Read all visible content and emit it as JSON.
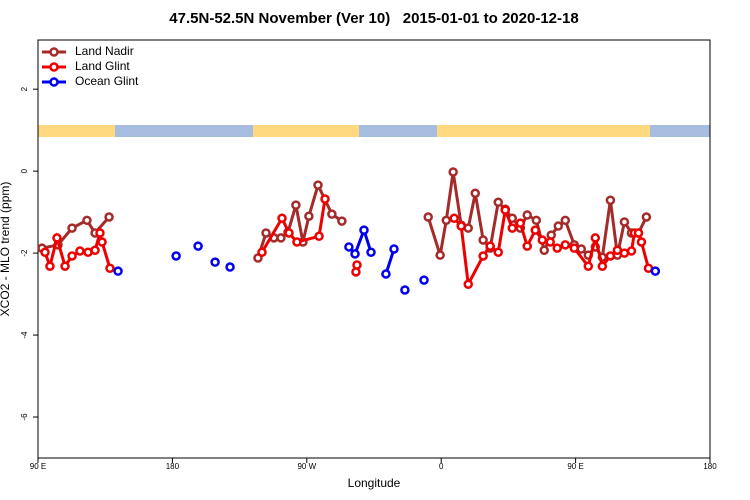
{
  "chart_data": {
    "type": "line",
    "title": "47.5N-52.5N November (Ver 10)   2015-01-01 to 2020-12-18",
    "x_label": "Longitude",
    "y_label": "XCO2 - MLO trend (ppm)",
    "xlim": [
      90,
      540
    ],
    "ylim": [
      -7,
      3.2
    ],
    "xticks": [
      {
        "value": 90,
        "label": "90 E"
      },
      180,
      {
        "value": 270,
        "label": "90 W"
      },
      {
        "value": 360,
        "label": "0"
      },
      {
        "value": 450,
        "label": "90 E"
      },
      {
        "value": 540,
        "label": "180"
      }
    ],
    "yticks": [
      -6,
      -4,
      -2,
      0,
      2
    ],
    "grid": false,
    "legend": "top-left",
    "series": [
      {
        "name": "Land Nadir",
        "color": "#a52a2a",
        "x": [
          92.7,
          103.4,
          112.8,
          122.8,
          128.2,
          137.6,
          null,
          237.3,
          242.7,
          248.0,
          252.7,
          257.4,
          262.7,
          267.4,
          271.4,
          277.5,
          286.8,
          293.5,
          null,
          351.3,
          359.3,
          363.4,
          368.0,
          373.4,
          378.1,
          382.8,
          388.1,
          392.8,
          398.2,
          402.9,
          407.6,
          413.0,
          417.6,
          423.7,
          429.0,
          433.7,
          438.4,
          443.1,
          449.1,
          453.8,
          458.5,
          463.2,
          467.9,
          473.3,
          478.0,
          482.7,
          487.4,
          492.1,
          497.4
        ],
        "values": [
          -1.88,
          -1.8,
          -1.39,
          -1.2,
          -1.51,
          -1.12,
          null,
          -2.12,
          -1.51,
          -1.63,
          -1.63,
          -1.49,
          -0.83,
          -1.73,
          -1.1,
          -0.34,
          -1.05,
          -1.22,
          null,
          -1.12,
          -2.05,
          -1.2,
          -0.02,
          -1.32,
          -1.39,
          -0.54,
          -1.68,
          -1.88,
          -0.76,
          -0.93,
          -1.15,
          -1.39,
          -1.07,
          -1.2,
          -1.93,
          -1.56,
          -1.34,
          -1.2,
          -1.8,
          -1.9,
          -2.05,
          -1.85,
          -2.1,
          -0.71,
          -2.05,
          -1.24,
          -1.51,
          -1.51,
          -1.12
        ]
      },
      {
        "name": "Land Glint",
        "color": "#ee0000",
        "x": [
          94.7,
          98.0,
          102.7,
          108.1,
          112.8,
          118.1,
          123.5,
          128.2,
          131.5,
          132.9,
          138.2,
          null,
          240.0,
          253.4,
          258.1,
          263.4,
          278.2,
          282.2,
          null,
          302.9,
          303.6,
          null,
          368.7,
          373.4,
          378.1,
          388.1,
          392.8,
          398.2,
          402.9,
          407.6,
          413.0,
          417.6,
          423.0,
          427.7,
          433.0,
          437.7,
          443.1,
          449.1,
          458.5,
          463.2,
          467.9,
          473.3,
          478.0,
          482.7,
          487.4,
          489.4,
          492.1,
          494.1,
          498.8
        ],
        "values": [
          -1.98,
          -2.32,
          -1.63,
          -2.32,
          -2.07,
          -1.95,
          -1.98,
          -1.93,
          -1.51,
          -1.73,
          -2.37,
          null,
          -1.98,
          -1.15,
          -1.51,
          -1.73,
          -1.59,
          -0.68,
          null,
          -2.46,
          -2.29,
          null,
          -1.15,
          -1.34,
          -2.76,
          -2.07,
          -1.83,
          -1.98,
          -0.95,
          -1.39,
          -1.27,
          -1.83,
          -1.44,
          -1.68,
          -1.73,
          -1.88,
          -1.8,
          -1.88,
          -2.32,
          -1.63,
          -2.32,
          -2.07,
          -1.93,
          -2.0,
          -1.95,
          -1.51,
          -1.51,
          -1.73,
          -2.37
        ]
      },
      {
        "name": "Ocean Glint",
        "color": "#0000ee",
        "x": [
          143.6,
          null,
          182.5,
          null,
          197.2,
          null,
          208.6,
          null,
          218.6,
          null,
          298.2,
          302.3,
          308.3,
          313.0,
          null,
          323.0,
          328.4,
          null,
          335.7,
          null,
          348.5,
          null,
          503.4
        ],
        "values": [
          -2.44,
          null,
          -2.07,
          null,
          -1.83,
          null,
          -2.22,
          null,
          -2.34,
          null,
          -1.85,
          -2.02,
          -1.44,
          -1.98,
          null,
          -2.51,
          -1.9,
          null,
          -2.9,
          null,
          -2.66,
          null,
          -2.44
        ]
      }
    ]
  }
}
